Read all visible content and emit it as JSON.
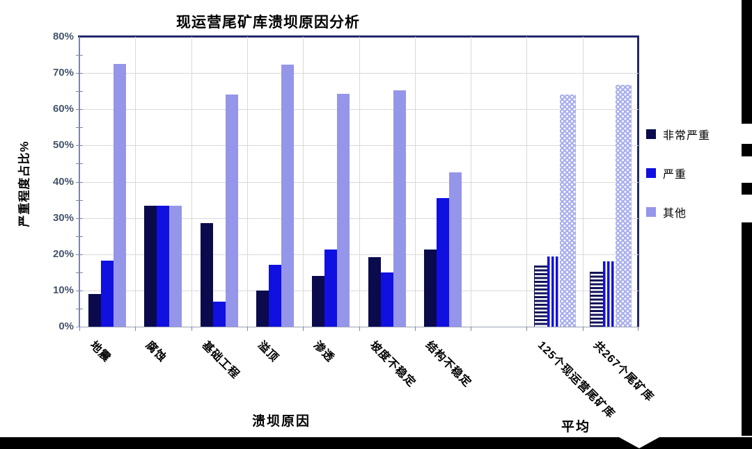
{
  "title": "现运营尾矿库溃坝原因分析",
  "y_axis": {
    "label": "严重程度占比%",
    "ticks": [
      "80%",
      "70%",
      "60%",
      "50%",
      "40%",
      "30%",
      "20%",
      "10%",
      "0%"
    ],
    "max_percent": 80
  },
  "x_axis": {
    "label": "溃坝原因",
    "avg_label": "平均"
  },
  "legend": {
    "position": "right",
    "items": [
      {
        "label": "非常严重",
        "color": "#0a0a4d"
      },
      {
        "label": "严重",
        "color": "#1010e0"
      },
      {
        "label": "其他",
        "color": "#9595ea"
      }
    ]
  },
  "chart_data": {
    "type": "bar",
    "title": "现运营尾矿库溃坝原因分析",
    "xlabel": "溃坝原因",
    "ylabel": "严重程度占比%",
    "ylim": [
      0,
      80
    ],
    "grid": true,
    "legend_position": "right",
    "categories": [
      "地震",
      "腐蚀",
      "基础工程",
      "溢顶",
      "渗透",
      "坡度不稳定",
      "结构不稳定"
    ],
    "avg_categories": [
      "125个现运营尾矿库",
      "共267个尾矿库"
    ],
    "avg_group_label": "平均",
    "series": [
      {
        "name": "非常严重",
        "values": [
          9,
          33.3,
          28.5,
          10,
          14,
          19.2,
          21.3
        ],
        "avg_values": [
          16.8,
          15.1
        ],
        "avg_pattern": "horizontal-stripes"
      },
      {
        "name": "严重",
        "values": [
          18.3,
          33.3,
          7,
          17,
          21.3,
          15,
          35.5
        ],
        "avg_values": [
          19.3,
          18
        ],
        "avg_pattern": "vertical-stripes"
      },
      {
        "name": "其他",
        "values": [
          72.5,
          33.3,
          64,
          72.3,
          64.3,
          65.3,
          42.5
        ],
        "avg_values": [
          64,
          66.7
        ],
        "avg_pattern": "dots"
      }
    ]
  }
}
